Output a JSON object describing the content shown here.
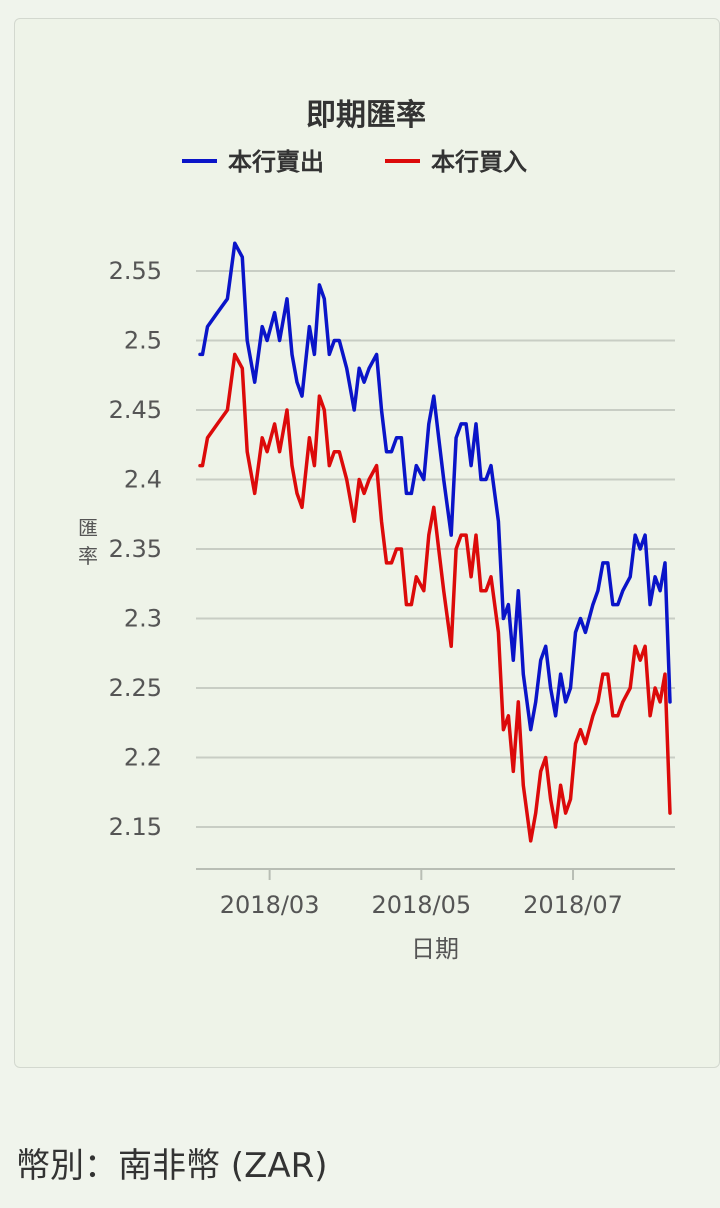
{
  "chart_data": {
    "type": "line",
    "title": "即期匯率",
    "xlabel": "日期",
    "ylabel": "匯率",
    "ylim": [
      2.14,
      2.57
    ],
    "y_ticks": [
      "2.55",
      "2.5",
      "2.45",
      "2.4",
      "2.35",
      "2.3",
      "2.25",
      "2.2",
      "2.15"
    ],
    "x_ticks": [
      "2018/03",
      "2018/05",
      "2018/07"
    ],
    "legend_position": "top",
    "series": [
      {
        "name": "本行賣出",
        "color": "#0a14c8",
        "x": [
          "2018-02-01",
          "2018-02-02",
          "2018-02-04",
          "2018-02-08",
          "2018-02-12",
          "2018-02-15",
          "2018-02-18",
          "2018-02-20",
          "2018-02-23",
          "2018-02-26",
          "2018-02-28",
          "2018-03-03",
          "2018-03-05",
          "2018-03-08",
          "2018-03-10",
          "2018-03-12",
          "2018-03-14",
          "2018-03-17",
          "2018-03-19",
          "2018-03-21",
          "2018-03-23",
          "2018-03-25",
          "2018-03-27",
          "2018-03-29",
          "2018-04-01",
          "2018-04-04",
          "2018-04-06",
          "2018-04-08",
          "2018-04-10",
          "2018-04-13",
          "2018-04-15",
          "2018-04-17",
          "2018-04-19",
          "2018-04-21",
          "2018-04-23",
          "2018-04-25",
          "2018-04-27",
          "2018-04-29",
          "2018-05-02",
          "2018-05-04",
          "2018-05-06",
          "2018-05-08",
          "2018-05-10",
          "2018-05-13",
          "2018-05-15",
          "2018-05-17",
          "2018-05-19",
          "2018-05-21",
          "2018-05-23",
          "2018-05-25",
          "2018-05-27",
          "2018-05-29",
          "2018-06-01",
          "2018-06-03",
          "2018-06-05",
          "2018-06-07",
          "2018-06-09",
          "2018-06-11",
          "2018-06-14",
          "2018-06-16",
          "2018-06-18",
          "2018-06-20",
          "2018-06-22",
          "2018-06-24",
          "2018-06-26",
          "2018-06-28",
          "2018-06-30",
          "2018-07-02",
          "2018-07-04",
          "2018-07-06",
          "2018-07-09",
          "2018-07-11",
          "2018-07-13",
          "2018-07-15",
          "2018-07-17",
          "2018-07-19",
          "2018-07-21",
          "2018-07-24",
          "2018-07-26",
          "2018-07-28",
          "2018-07-30",
          "2018-08-01",
          "2018-08-03",
          "2018-08-05",
          "2018-08-07",
          "2018-08-09"
        ],
        "y": [
          2.49,
          2.49,
          2.51,
          2.52,
          2.53,
          2.57,
          2.56,
          2.5,
          2.47,
          2.51,
          2.5,
          2.52,
          2.5,
          2.53,
          2.49,
          2.47,
          2.46,
          2.51,
          2.49,
          2.54,
          2.53,
          2.49,
          2.5,
          2.5,
          2.48,
          2.45,
          2.48,
          2.47,
          2.48,
          2.49,
          2.45,
          2.42,
          2.42,
          2.43,
          2.43,
          2.39,
          2.39,
          2.41,
          2.4,
          2.44,
          2.46,
          2.43,
          2.4,
          2.36,
          2.43,
          2.44,
          2.44,
          2.41,
          2.44,
          2.4,
          2.4,
          2.41,
          2.37,
          2.3,
          2.31,
          2.27,
          2.32,
          2.26,
          2.22,
          2.24,
          2.27,
          2.28,
          2.25,
          2.23,
          2.26,
          2.24,
          2.25,
          2.29,
          2.3,
          2.29,
          2.31,
          2.32,
          2.34,
          2.34,
          2.31,
          2.31,
          2.32,
          2.33,
          2.36,
          2.35,
          2.36,
          2.31,
          2.33,
          2.32,
          2.34,
          2.24
        ]
      },
      {
        "name": "本行買入",
        "color": "#dc0a0a",
        "x": [
          "2018-02-01",
          "2018-02-02",
          "2018-02-04",
          "2018-02-08",
          "2018-02-12",
          "2018-02-15",
          "2018-02-18",
          "2018-02-20",
          "2018-02-23",
          "2018-02-26",
          "2018-02-28",
          "2018-03-03",
          "2018-03-05",
          "2018-03-08",
          "2018-03-10",
          "2018-03-12",
          "2018-03-14",
          "2018-03-17",
          "2018-03-19",
          "2018-03-21",
          "2018-03-23",
          "2018-03-25",
          "2018-03-27",
          "2018-03-29",
          "2018-04-01",
          "2018-04-04",
          "2018-04-06",
          "2018-04-08",
          "2018-04-10",
          "2018-04-13",
          "2018-04-15",
          "2018-04-17",
          "2018-04-19",
          "2018-04-21",
          "2018-04-23",
          "2018-04-25",
          "2018-04-27",
          "2018-04-29",
          "2018-05-02",
          "2018-05-04",
          "2018-05-06",
          "2018-05-08",
          "2018-05-10",
          "2018-05-13",
          "2018-05-15",
          "2018-05-17",
          "2018-05-19",
          "2018-05-21",
          "2018-05-23",
          "2018-05-25",
          "2018-05-27",
          "2018-05-29",
          "2018-06-01",
          "2018-06-03",
          "2018-06-05",
          "2018-06-07",
          "2018-06-09",
          "2018-06-11",
          "2018-06-14",
          "2018-06-16",
          "2018-06-18",
          "2018-06-20",
          "2018-06-22",
          "2018-06-24",
          "2018-06-26",
          "2018-06-28",
          "2018-06-30",
          "2018-07-02",
          "2018-07-04",
          "2018-07-06",
          "2018-07-09",
          "2018-07-11",
          "2018-07-13",
          "2018-07-15",
          "2018-07-17",
          "2018-07-19",
          "2018-07-21",
          "2018-07-24",
          "2018-07-26",
          "2018-07-28",
          "2018-07-30",
          "2018-08-01",
          "2018-08-03",
          "2018-08-05",
          "2018-08-07",
          "2018-08-09"
        ],
        "y": [
          2.41,
          2.41,
          2.43,
          2.44,
          2.45,
          2.49,
          2.48,
          2.42,
          2.39,
          2.43,
          2.42,
          2.44,
          2.42,
          2.45,
          2.41,
          2.39,
          2.38,
          2.43,
          2.41,
          2.46,
          2.45,
          2.41,
          2.42,
          2.42,
          2.4,
          2.37,
          2.4,
          2.39,
          2.4,
          2.41,
          2.37,
          2.34,
          2.34,
          2.35,
          2.35,
          2.31,
          2.31,
          2.33,
          2.32,
          2.36,
          2.38,
          2.35,
          2.32,
          2.28,
          2.35,
          2.36,
          2.36,
          2.33,
          2.36,
          2.32,
          2.32,
          2.33,
          2.29,
          2.22,
          2.23,
          2.19,
          2.24,
          2.18,
          2.14,
          2.16,
          2.19,
          2.2,
          2.17,
          2.15,
          2.18,
          2.16,
          2.17,
          2.21,
          2.22,
          2.21,
          2.23,
          2.24,
          2.26,
          2.26,
          2.23,
          2.23,
          2.24,
          2.25,
          2.28,
          2.27,
          2.28,
          2.23,
          2.25,
          2.24,
          2.26,
          2.16
        ]
      }
    ]
  },
  "footer": {
    "currency_label": "幣別：南非幣 (ZAR)"
  }
}
